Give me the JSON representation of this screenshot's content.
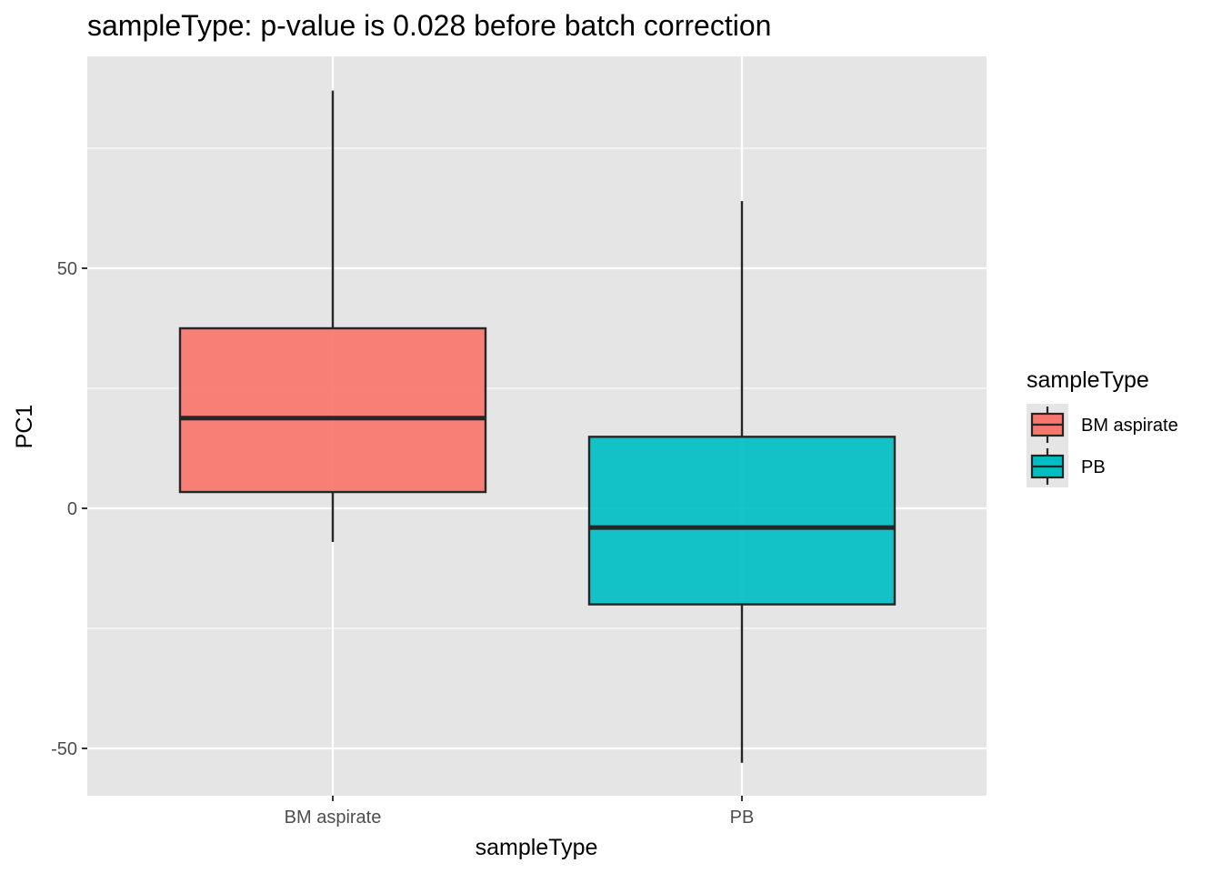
{
  "chart_data": {
    "type": "boxplot",
    "title": "sampleType: p-value is 0.028 before batch correction",
    "xlabel": "sampleType",
    "ylabel": "PC1",
    "ylim": [
      -59,
      94
    ],
    "yticks": [
      -50,
      0,
      50
    ],
    "categories": [
      "BM aspirate",
      "PB"
    ],
    "boxes": [
      {
        "name": "BM aspirate",
        "whisker_low": -7,
        "q1": 3.4,
        "median": 18.8,
        "q3": 37.5,
        "whisker_high": 87,
        "color": "#F8766D"
      },
      {
        "name": "PB",
        "whisker_low": -53,
        "q1": -20,
        "median": -4,
        "q3": 14.9,
        "whisker_high": 64,
        "color": "#00BFC4"
      }
    ],
    "legend": {
      "title": "sampleType",
      "entries": [
        "BM aspirate",
        "PB"
      ],
      "position": "right"
    },
    "colors": {
      "panel": "#E5E5E5",
      "grid": "#FFFFFF",
      "box_outline": "#262626",
      "tick_text": "#4D4D4D"
    }
  }
}
